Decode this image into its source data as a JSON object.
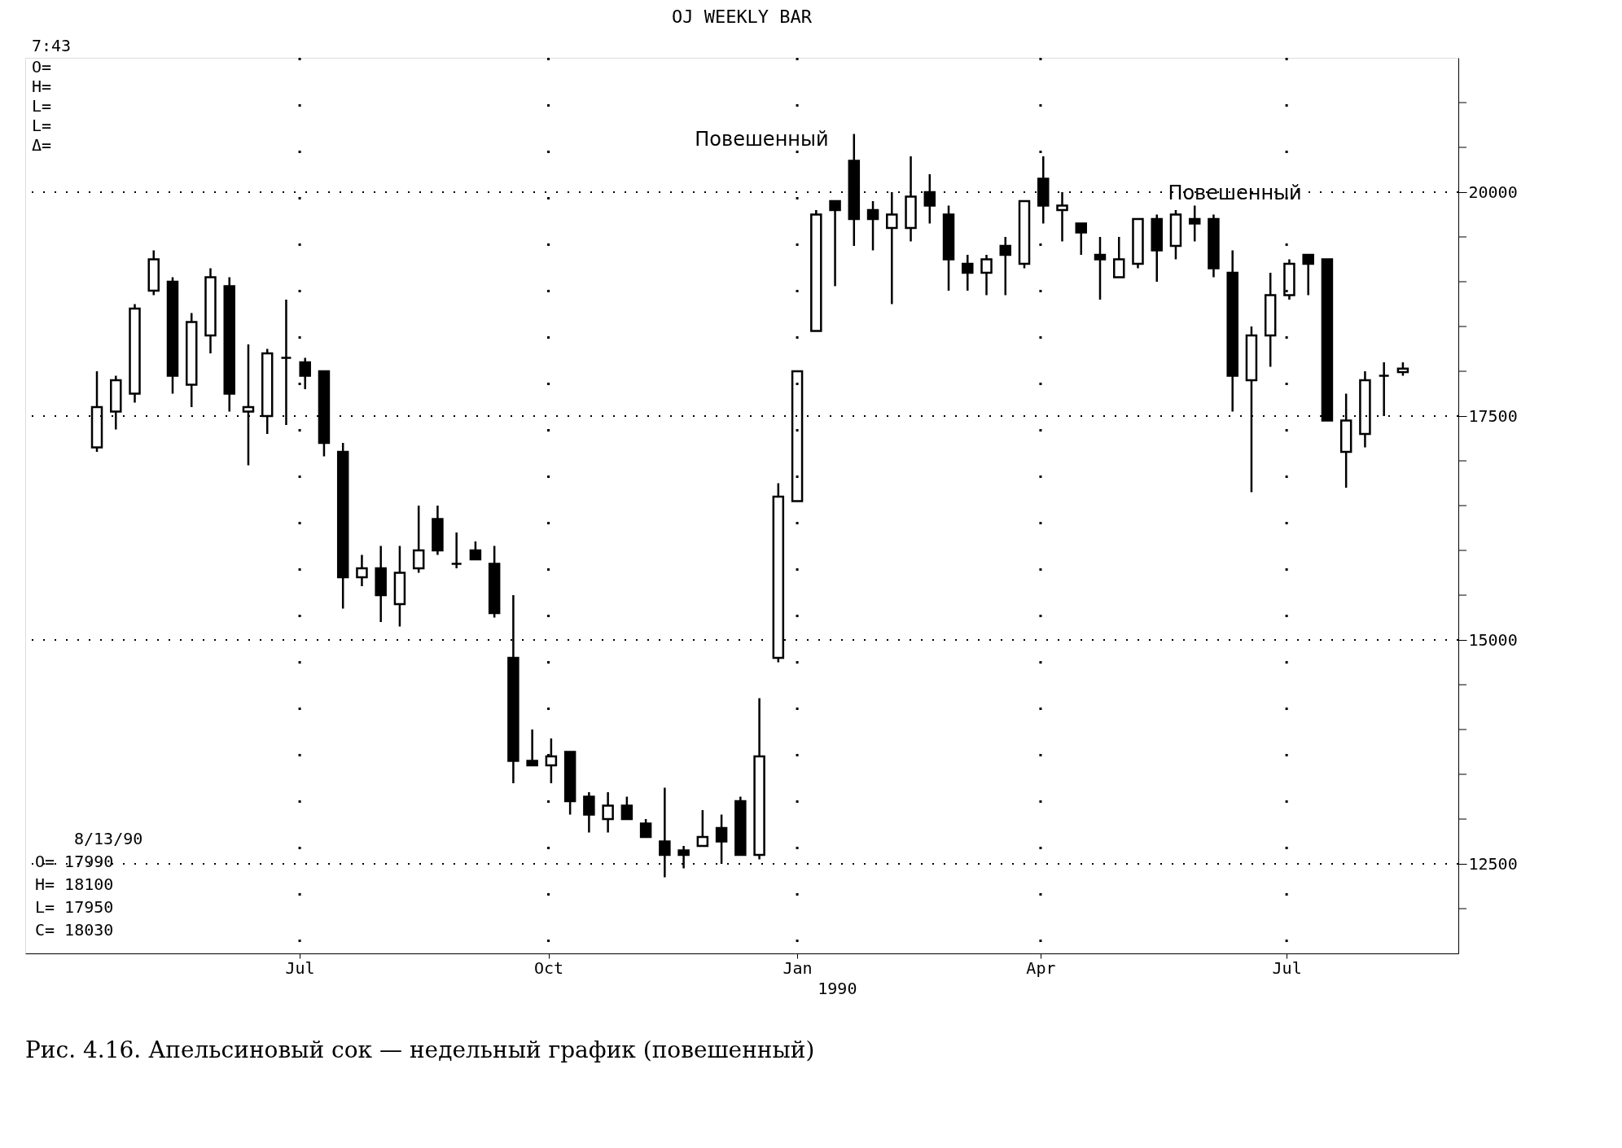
{
  "chart_data": {
    "type": "candlestick",
    "title": "OJ WEEKLY BAR",
    "x": [
      "1989-04-17",
      "1989-04-24",
      "1989-05-01",
      "1989-05-08",
      "1989-05-15",
      "1989-05-22",
      "1989-05-29",
      "1989-06-05",
      "1989-06-12",
      "1989-06-19",
      "1989-06-26",
      "1989-07-03",
      "1989-07-10",
      "1989-07-17",
      "1989-07-24",
      "1989-07-31",
      "1989-08-07",
      "1989-08-14",
      "1989-08-21",
      "1989-08-28",
      "1989-09-04",
      "1989-09-11",
      "1989-09-18",
      "1989-09-25",
      "1989-10-02",
      "1989-10-09",
      "1989-10-16",
      "1989-10-23",
      "1989-10-30",
      "1989-11-06",
      "1989-11-13",
      "1989-11-20",
      "1989-11-27",
      "1989-12-04",
      "1989-12-11",
      "1989-12-18",
      "1989-12-25",
      "1990-01-01",
      "1990-01-08",
      "1990-01-15",
      "1990-01-22",
      "1990-01-29",
      "1990-02-05",
      "1990-02-12",
      "1990-02-19",
      "1990-02-26",
      "1990-03-05",
      "1990-03-12",
      "1990-03-19",
      "1990-03-26",
      "1990-04-02",
      "1990-04-09",
      "1990-04-16",
      "1990-04-23",
      "1990-04-30",
      "1990-05-07",
      "1990-05-14",
      "1990-05-21",
      "1990-05-28",
      "1990-06-04",
      "1990-06-11",
      "1990-06-18",
      "1990-06-25",
      "1990-07-02",
      "1990-07-09",
      "1990-07-16",
      "1990-07-23",
      "1990-07-30",
      "1990-08-06",
      "1990-08-13"
    ],
    "ohlc": [
      [
        17150,
        18000,
        17100,
        17600
      ],
      [
        17550,
        17950,
        17350,
        17900
      ],
      [
        17750,
        18750,
        17650,
        18700
      ],
      [
        18900,
        19350,
        18850,
        19250
      ],
      [
        19000,
        19050,
        17750,
        17950
      ],
      [
        17850,
        18650,
        17600,
        18550
      ],
      [
        18400,
        19150,
        18200,
        19050
      ],
      [
        18950,
        19050,
        17550,
        17750
      ],
      [
        17550,
        18300,
        16950,
        17600
      ],
      [
        17500,
        18250,
        17300,
        18200
      ],
      [
        18150,
        18800,
        17400,
        18150
      ],
      [
        18100,
        18150,
        17800,
        17950
      ],
      [
        18000,
        18000,
        17050,
        17200
      ],
      [
        17100,
        17200,
        15350,
        15700
      ],
      [
        15700,
        15950,
        15600,
        15800
      ],
      [
        15800,
        16050,
        15200,
        15500
      ],
      [
        15400,
        16050,
        15150,
        15750
      ],
      [
        15800,
        16500,
        15750,
        16000
      ],
      [
        16350,
        16500,
        15950,
        16000
      ],
      [
        15850,
        16200,
        15800,
        15850
      ],
      [
        16000,
        16100,
        15900,
        15900
      ],
      [
        15850,
        16050,
        15250,
        15300
      ],
      [
        14800,
        15500,
        13400,
        13650
      ],
      [
        13650,
        14000,
        13600,
        13600
      ],
      [
        13600,
        13900,
        13400,
        13700
      ],
      [
        13750,
        13750,
        13050,
        13200
      ],
      [
        13250,
        13300,
        12850,
        13050
      ],
      [
        13000,
        13300,
        12850,
        13150
      ],
      [
        13150,
        13250,
        13000,
        13000
      ],
      [
        12950,
        13000,
        12800,
        12800
      ],
      [
        12750,
        13350,
        12350,
        12600
      ],
      [
        12650,
        12700,
        12450,
        12600
      ],
      [
        12700,
        13100,
        12700,
        12800
      ],
      [
        12900,
        13050,
        12500,
        12750
      ],
      [
        13200,
        13250,
        12600,
        12600
      ],
      [
        12600,
        14350,
        12550,
        13700
      ],
      [
        14800,
        16750,
        14750,
        16600
      ],
      [
        16550,
        18000,
        16550,
        18000
      ],
      [
        18450,
        19800,
        18450,
        19750
      ],
      [
        19900,
        19900,
        18950,
        19800
      ],
      [
        20350,
        20650,
        19400,
        19700
      ],
      [
        19800,
        19900,
        19350,
        19700
      ],
      [
        19600,
        20000,
        18750,
        19750
      ],
      [
        19600,
        20400,
        19450,
        19950
      ],
      [
        20000,
        20200,
        19650,
        19850
      ],
      [
        19750,
        19850,
        18900,
        19250
      ],
      [
        19200,
        19300,
        18900,
        19100
      ],
      [
        19100,
        19300,
        18850,
        19250
      ],
      [
        19400,
        19500,
        18850,
        19300
      ],
      [
        19200,
        19900,
        19150,
        19900
      ],
      [
        20150,
        20400,
        19650,
        19850
      ],
      [
        19800,
        20000,
        19450,
        19850
      ],
      [
        19650,
        19650,
        19300,
        19550
      ],
      [
        19300,
        19500,
        18800,
        19250
      ],
      [
        19050,
        19500,
        19050,
        19250
      ],
      [
        19200,
        19700,
        19150,
        19700
      ],
      [
        19700,
        19750,
        19000,
        19350
      ],
      [
        19400,
        19800,
        19250,
        19750
      ],
      [
        19700,
        19850,
        19450,
        19650
      ],
      [
        19700,
        19750,
        19050,
        19150
      ],
      [
        19100,
        19350,
        17550,
        17950
      ],
      [
        17900,
        18500,
        16650,
        18400
      ],
      [
        18400,
        19100,
        18050,
        18850
      ],
      [
        18850,
        19250,
        18800,
        19200
      ],
      [
        19300,
        19300,
        18850,
        19200
      ],
      [
        19250,
        19250,
        17450,
        17450
      ],
      [
        17100,
        17750,
        16700,
        17450
      ],
      [
        17300,
        18000,
        17150,
        17900
      ],
      [
        17950,
        18100,
        17500,
        17950
      ],
      [
        17990,
        18100,
        17950,
        18030
      ]
    ],
    "xlim": [
      "1989-03-23",
      "1990-09-01"
    ],
    "xticks": [
      {
        "value": "1989-07-01",
        "label": "Jul"
      },
      {
        "value": "1989-10-01",
        "label": "Oct"
      },
      {
        "value": "1990-01-01",
        "label": "Jan"
      },
      {
        "value": "1990-04-01",
        "label": "Apr"
      },
      {
        "value": "1990-07-01",
        "label": "Jul"
      }
    ],
    "ylim": [
      11500,
      21500
    ],
    "yticks": [
      {
        "value": 12000,
        "label": null
      },
      12500,
      {
        "value": 13000,
        "label": null
      },
      {
        "value": 13500,
        "label": null
      },
      {
        "value": 14000,
        "label": null
      },
      {
        "value": 14500,
        "label": null
      },
      15000,
      {
        "value": 15500,
        "label": null
      },
      {
        "value": 16000,
        "label": null
      },
      {
        "value": 16500,
        "label": null
      },
      {
        "value": 17000,
        "label": null
      },
      17500,
      {
        "value": 18000,
        "label": null
      },
      {
        "value": 18500,
        "label": null
      },
      {
        "value": 19000,
        "label": null
      },
      {
        "value": 19500,
        "label": null
      },
      20000,
      {
        "value": 20500,
        "label": null
      },
      {
        "value": 21000,
        "label": null
      }
    ],
    "grid": true,
    "annotations": [
      "7:43",
      "O=",
      "H=",
      "L=",
      "L=",
      "Δ=",
      "8/13/90",
      "O= 17990",
      "H= 18100",
      "L= 17950",
      "C= 18030",
      "1990",
      {
        "text": "Повешенный",
        "x": "1990-01-15",
        "y": 19900
      },
      {
        "text": "Повешенный",
        "x": "1990-07-09",
        "y": 19300
      },
      "Рис. 4.16. Апельсиновый сок — недельный график (повешенный)"
    ]
  }
}
